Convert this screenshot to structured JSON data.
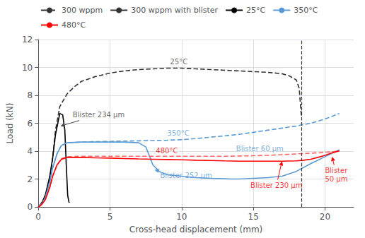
{
  "chart_data": {
    "type": "line",
    "xlabel": "Cross-head displacement (mm)",
    "ylabel": "Load (kN)",
    "xlim": [
      0,
      22
    ],
    "ylim": [
      0,
      12
    ],
    "xticks": [
      0,
      5,
      10,
      15,
      20
    ],
    "yticks": [
      0,
      2,
      4,
      6,
      8,
      10,
      12
    ],
    "grid": true,
    "legend": "upper left",
    "series": [
      {
        "x": [
          0,
          0.1,
          0.3,
          0.5,
          0.8,
          1.0,
          1.2,
          1.5,
          2.0,
          2.5,
          3.0,
          4.0,
          5.0,
          6.0,
          7.0,
          8.0,
          9.0,
          10.0,
          11.0,
          12.0,
          13.0,
          14.0,
          15.0,
          16.0,
          17.0,
          17.5,
          18.0,
          18.2,
          18.35
        ],
        "values": [
          0,
          0.1,
          0.4,
          0.8,
          2.0,
          3.5,
          5.5,
          7.2,
          8.1,
          8.6,
          9.0,
          9.35,
          9.6,
          9.75,
          9.85,
          9.9,
          9.95,
          9.95,
          9.9,
          9.85,
          9.8,
          9.75,
          9.7,
          9.65,
          9.55,
          9.4,
          9.1,
          8.5,
          6.5
        ],
        "color": "#333333",
        "line_style": "dashed"
      },
      {
        "x": [
          0,
          0.1,
          0.3,
          0.5,
          0.8,
          1.0,
          1.2,
          1.5,
          1.7,
          1.85,
          1.95,
          2.05,
          2.15
        ],
        "values": [
          0,
          0.1,
          0.4,
          0.9,
          2.2,
          3.5,
          5.2,
          6.7,
          6.6,
          5.5,
          3.0,
          0.8,
          0.3
        ],
        "color": "#000000",
        "line_style": "solid"
      },
      {
        "x": [
          0,
          0.1,
          0.3,
          0.5,
          0.8,
          1.0,
          1.3,
          1.6,
          2.0,
          3.0,
          4.0,
          5.0,
          6.0,
          7.0,
          8.0,
          9.0,
          10.0,
          11.0,
          12.0,
          13.0,
          14.0,
          15.0,
          16.0,
          17.0,
          18.0,
          19.0,
          20.0,
          21.0
        ],
        "values": [
          0,
          0.08,
          0.3,
          0.7,
          1.8,
          2.8,
          3.8,
          4.4,
          4.6,
          4.65,
          4.68,
          4.7,
          4.72,
          4.74,
          4.76,
          4.78,
          4.82,
          4.9,
          5.0,
          5.1,
          5.2,
          5.35,
          5.5,
          5.65,
          5.8,
          6.0,
          6.3,
          6.7
        ],
        "color": "#5B9BD5",
        "line_style": "dashed"
      },
      {
        "x": [
          0,
          0.1,
          0.3,
          0.5,
          0.8,
          1.0,
          1.3,
          1.6,
          2.0,
          3.0,
          4.0,
          5.0,
          6.0,
          7.0,
          7.5,
          8.0,
          8.5,
          9.0,
          10.0,
          11.0,
          12.0,
          13.0,
          13.5,
          14.0,
          15.0,
          16.0,
          17.0,
          18.0,
          19.0,
          20.0,
          21.0
        ],
        "values": [
          0,
          0.08,
          0.3,
          0.7,
          1.8,
          2.8,
          3.8,
          4.4,
          4.6,
          4.65,
          4.65,
          4.65,
          4.65,
          4.6,
          4.3,
          3.0,
          2.5,
          2.3,
          2.2,
          2.1,
          2.05,
          2.02,
          2.0,
          2.0,
          2.05,
          2.1,
          2.2,
          2.55,
          3.1,
          3.6,
          4.1
        ],
        "color": "#5B9BD5",
        "line_style": "solid"
      },
      {
        "x": [
          0,
          0.1,
          0.3,
          0.5,
          0.8,
          1.0,
          1.3,
          1.6,
          2.0,
          3.0,
          4.0,
          5.0,
          6.0,
          7.0,
          8.0,
          9.0,
          10.0,
          11.0,
          12.0,
          13.0,
          14.0,
          15.0,
          16.0,
          17.0,
          18.0,
          19.0,
          20.0,
          21.0
        ],
        "values": [
          0,
          0.05,
          0.25,
          0.55,
          1.4,
          2.2,
          3.0,
          3.45,
          3.6,
          3.63,
          3.63,
          3.63,
          3.63,
          3.63,
          3.63,
          3.63,
          3.63,
          3.63,
          3.63,
          3.63,
          3.65,
          3.67,
          3.7,
          3.75,
          3.8,
          3.85,
          3.92,
          4.0
        ],
        "color": "#FF6666",
        "line_style": "dashed"
      },
      {
        "x": [
          0,
          0.1,
          0.3,
          0.5,
          0.8,
          1.0,
          1.3,
          1.6,
          2.0,
          3.0,
          4.0,
          5.0,
          6.0,
          7.0,
          8.0,
          9.0,
          10.0,
          11.0,
          12.0,
          13.0,
          14.0,
          15.0,
          16.0,
          17.0,
          18.0,
          18.5,
          19.0,
          19.5,
          20.0,
          20.5,
          21.0
        ],
        "values": [
          0,
          0.05,
          0.25,
          0.55,
          1.4,
          2.2,
          3.0,
          3.4,
          3.55,
          3.55,
          3.52,
          3.5,
          3.47,
          3.44,
          3.42,
          3.4,
          3.38,
          3.35,
          3.33,
          3.3,
          3.28,
          3.28,
          3.28,
          3.28,
          3.3,
          3.35,
          3.42,
          3.55,
          3.7,
          3.88,
          4.02
        ],
        "color": "#FF0000",
        "line_style": "solid"
      }
    ],
    "vline": {
      "x": 18.35,
      "color": "#333333",
      "line_style": "dashed"
    },
    "annotations": [
      {
        "text": "25°C",
        "x": 9.2,
        "y": 10.1,
        "color": "#444444"
      },
      {
        "text": "350°C",
        "x": 9.0,
        "y": 5.0,
        "color": "#5B9BD5"
      },
      {
        "text": "480°C",
        "x": 8.2,
        "y": 3.72,
        "color": "#FF0000"
      },
      {
        "text": "Blister 234 μm",
        "x": 2.4,
        "y": 6.6,
        "arrow_x": 1.55,
        "arrow_y": 5.8,
        "color": "#444444"
      },
      {
        "text": "Blister 60 μm",
        "x": 13.8,
        "y": 4.2,
        "arrow_x": 14.5,
        "arrow_y": 4.62,
        "color": "#5B9BD5"
      },
      {
        "text": "Blister 252 μm",
        "x": 8.5,
        "y": 2.25,
        "arrow_x": 8.1,
        "arrow_y": 2.65,
        "color": "#5B9BD5"
      },
      {
        "text": "Blister 230 μm",
        "x": 14.8,
        "y": 1.55,
        "arrow_x": 17.0,
        "arrow_y": 3.28,
        "color": "#FF0000"
      },
      {
        "text": "Blister\n50 μm",
        "x": 20.0,
        "y": 2.3,
        "arrow_x": 20.5,
        "arrow_y": 3.6,
        "color": "#FF0000"
      }
    ],
    "legend_entries": [
      {
        "name": "300 wppm",
        "color": "#333333",
        "line_style": "dashed"
      },
      {
        "name": "300 wppm with blister",
        "color": "#333333",
        "line_style": "solid"
      },
      {
        "name": "25°C",
        "color": "#000000",
        "line_style": "solid"
      },
      {
        "name": "350°C",
        "color": "#5B9BD5",
        "line_style": "solid"
      },
      {
        "name": "480°C",
        "color": "#FF0000",
        "line_style": "solid"
      }
    ]
  }
}
